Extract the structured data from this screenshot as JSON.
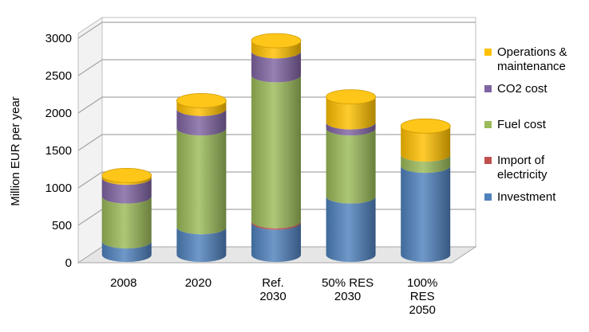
{
  "chart_data": {
    "type": "bar",
    "stacked": true,
    "style": "3d-cylinder",
    "ylabel": "Million EUR per year",
    "xlabel": "",
    "ylim": [
      0,
      3000
    ],
    "yticks": [
      "0",
      "500",
      "1000",
      "1500",
      "2000",
      "2500",
      "3000"
    ],
    "grid": true,
    "legend_position": "right",
    "categories": [
      [
        "2008"
      ],
      [
        "2020"
      ],
      [
        "Ref.",
        "2030"
      ],
      [
        "50% RES",
        "2030"
      ],
      [
        "100%",
        "RES",
        "2050"
      ]
    ],
    "series": [
      {
        "name": "Investment",
        "legend_lines": [
          "Investment"
        ],
        "color": "#4f81bd",
        "values": [
          180,
          370,
          430,
          780,
          1190
        ]
      },
      {
        "name": "Import of electricity",
        "legend_lines": [
          "Import of",
          "electricity"
        ],
        "color": "#c0504d",
        "values": [
          0,
          0,
          20,
          0,
          0
        ]
      },
      {
        "name": "Fuel cost",
        "legend_lines": [
          "Fuel cost"
        ],
        "color": "#9bbb59",
        "values": [
          600,
          1320,
          1950,
          910,
          150
        ]
      },
      {
        "name": "CO2 cost",
        "legend_lines": [
          "CO2 cost"
        ],
        "color": "#8064a2",
        "values": [
          250,
          260,
          320,
          80,
          0
        ]
      },
      {
        "name": "Operations & maintenance",
        "legend_lines": [
          "Operations &",
          "maintenance"
        ],
        "color": "#ffc000",
        "values": [
          30,
          110,
          140,
          340,
          380
        ]
      }
    ]
  }
}
